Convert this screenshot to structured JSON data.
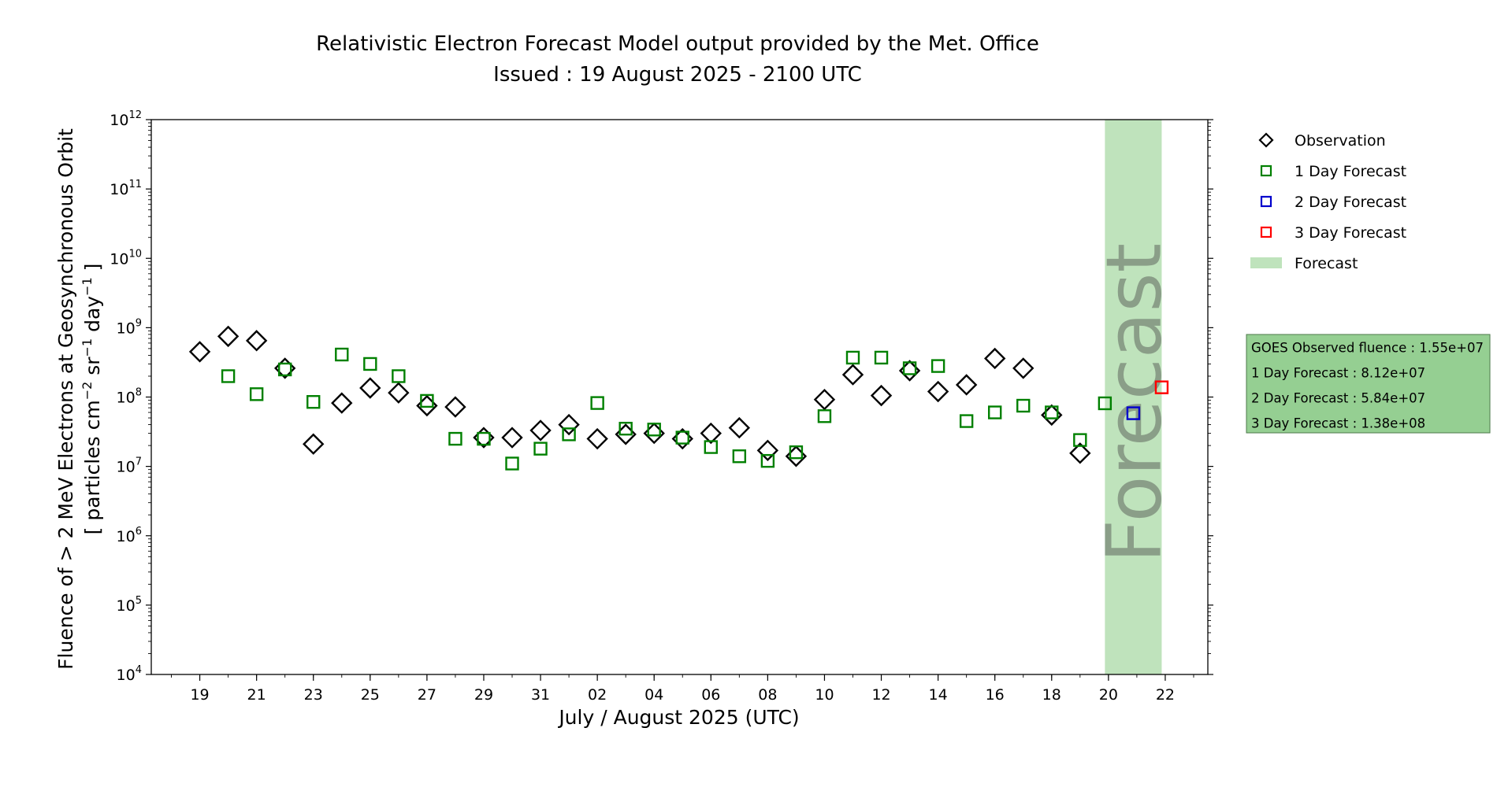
{
  "chart_data": {
    "type": "scatter",
    "title": "Relativistic Electron Forecast Model output provided by the Met. Office",
    "subtitle": "Issued : 19 August 2025 - 2100 UTC",
    "xlabel": "July / August 2025 (UTC)",
    "ylabel_line1": "Fluence of > 2 MeV Electrons at Geosynchronous Orbit",
    "ylabel_line2": "[ particles cm",
    "ylabel_sup1": "−2",
    "ylabel_mid": " sr",
    "ylabel_sup2": "−1",
    "ylabel_mid2": " day",
    "ylabel_sup3": "−1",
    "ylabel_end": " ]",
    "y_scale": "log",
    "ylim": [
      10000,
      1000000000000
    ],
    "y_ticks": [
      {
        "base": "10",
        "exp": "4",
        "value": 10000
      },
      {
        "base": "10",
        "exp": "5",
        "value": 100000
      },
      {
        "base": "10",
        "exp": "6",
        "value": 1000000
      },
      {
        "base": "10",
        "exp": "7",
        "value": 10000000
      },
      {
        "base": "10",
        "exp": "8",
        "value": 100000000
      },
      {
        "base": "10",
        "exp": "9",
        "value": 1000000000
      },
      {
        "base": "10",
        "exp": "10",
        "value": 10000000000
      },
      {
        "base": "10",
        "exp": "11",
        "value": 100000000000
      },
      {
        "base": "10",
        "exp": "12",
        "value": 1000000000000
      }
    ],
    "xlim": [
      "2025-07-17T07:00",
      "2025-08-23T12:00"
    ],
    "x_ticks": [
      {
        "label": "19",
        "date": "2025-07-19"
      },
      {
        "label": "21",
        "date": "2025-07-21"
      },
      {
        "label": "23",
        "date": "2025-07-23"
      },
      {
        "label": "25",
        "date": "2025-07-25"
      },
      {
        "label": "27",
        "date": "2025-07-27"
      },
      {
        "label": "29",
        "date": "2025-07-29"
      },
      {
        "label": "31",
        "date": "2025-07-31"
      },
      {
        "label": "02",
        "date": "2025-08-02"
      },
      {
        "label": "04",
        "date": "2025-08-04"
      },
      {
        "label": "06",
        "date": "2025-08-06"
      },
      {
        "label": "08",
        "date": "2025-08-08"
      },
      {
        "label": "10",
        "date": "2025-08-10"
      },
      {
        "label": "12",
        "date": "2025-08-12"
      },
      {
        "label": "14",
        "date": "2025-08-14"
      },
      {
        "label": "16",
        "date": "2025-08-16"
      },
      {
        "label": "18",
        "date": "2025-08-18"
      },
      {
        "label": "20",
        "date": "2025-08-20"
      },
      {
        "label": "22",
        "date": "2025-08-22"
      }
    ],
    "forecast_region": {
      "label": "Forecast",
      "start": "2025-08-19T21:00",
      "end": "2025-08-21T21:00",
      "color": "#bfe3bc"
    },
    "grid": false,
    "legend_position": "right",
    "legend": [
      {
        "label": "Observation",
        "marker": "diamond",
        "color": "#000000"
      },
      {
        "label": "1 Day Forecast",
        "marker": "square",
        "color": "#008000"
      },
      {
        "label": "2 Day Forecast",
        "marker": "square",
        "color": "#0000cc"
      },
      {
        "label": "3 Day Forecast",
        "marker": "square",
        "color": "#ff0000"
      },
      {
        "label": "Forecast",
        "marker": "band",
        "color": "#bfe3bc"
      }
    ],
    "series": [
      {
        "name": "Observation",
        "marker": "diamond",
        "color": "#000000",
        "points": [
          {
            "x": "2025-07-19",
            "y": 450000000
          },
          {
            "x": "2025-07-20",
            "y": 750000000
          },
          {
            "x": "2025-07-21",
            "y": 650000000
          },
          {
            "x": "2025-07-22",
            "y": 260000000
          },
          {
            "x": "2025-07-23",
            "y": 21000000
          },
          {
            "x": "2025-07-24",
            "y": 82000000
          },
          {
            "x": "2025-07-25",
            "y": 135000000
          },
          {
            "x": "2025-07-26",
            "y": 115000000
          },
          {
            "x": "2025-07-27",
            "y": 75000000
          },
          {
            "x": "2025-07-28",
            "y": 72000000
          },
          {
            "x": "2025-07-29",
            "y": 26000000
          },
          {
            "x": "2025-07-30",
            "y": 26000000
          },
          {
            "x": "2025-07-31",
            "y": 33000000
          },
          {
            "x": "2025-08-01",
            "y": 40000000
          },
          {
            "x": "2025-08-02",
            "y": 25000000
          },
          {
            "x": "2025-08-03",
            "y": 29000000
          },
          {
            "x": "2025-08-04",
            "y": 30000000
          },
          {
            "x": "2025-08-05",
            "y": 25000000
          },
          {
            "x": "2025-08-06",
            "y": 30000000
          },
          {
            "x": "2025-08-07",
            "y": 36000000
          },
          {
            "x": "2025-08-08",
            "y": 17000000
          },
          {
            "x": "2025-08-09",
            "y": 14000000
          },
          {
            "x": "2025-08-10",
            "y": 92000000
          },
          {
            "x": "2025-08-11",
            "y": 210000000
          },
          {
            "x": "2025-08-12",
            "y": 105000000
          },
          {
            "x": "2025-08-13",
            "y": 240000000
          },
          {
            "x": "2025-08-14",
            "y": 120000000
          },
          {
            "x": "2025-08-15",
            "y": 150000000
          },
          {
            "x": "2025-08-16",
            "y": 360000000
          },
          {
            "x": "2025-08-17",
            "y": 260000000
          },
          {
            "x": "2025-08-18",
            "y": 55000000
          },
          {
            "x": "2025-08-19",
            "y": 15500000
          }
        ]
      },
      {
        "name": "1 Day Forecast",
        "marker": "square",
        "color": "#008000",
        "points": [
          {
            "x": "2025-07-20",
            "y": 200000000
          },
          {
            "x": "2025-07-21",
            "y": 110000000
          },
          {
            "x": "2025-07-22",
            "y": 250000000
          },
          {
            "x": "2025-07-23",
            "y": 85000000
          },
          {
            "x": "2025-07-24",
            "y": 410000000
          },
          {
            "x": "2025-07-25",
            "y": 300000000
          },
          {
            "x": "2025-07-26",
            "y": 200000000
          },
          {
            "x": "2025-07-27",
            "y": 88000000
          },
          {
            "x": "2025-07-28",
            "y": 25000000
          },
          {
            "x": "2025-07-29",
            "y": 25000000
          },
          {
            "x": "2025-07-30",
            "y": 11000000
          },
          {
            "x": "2025-07-31",
            "y": 18000000
          },
          {
            "x": "2025-08-01",
            "y": 29000000
          },
          {
            "x": "2025-08-02",
            "y": 82000000
          },
          {
            "x": "2025-08-03",
            "y": 35000000
          },
          {
            "x": "2025-08-04",
            "y": 34000000
          },
          {
            "x": "2025-08-05",
            "y": 26000000
          },
          {
            "x": "2025-08-06",
            "y": 19000000
          },
          {
            "x": "2025-08-07",
            "y": 14000000
          },
          {
            "x": "2025-08-08",
            "y": 12000000
          },
          {
            "x": "2025-08-09",
            "y": 16000000
          },
          {
            "x": "2025-08-10",
            "y": 53000000
          },
          {
            "x": "2025-08-11",
            "y": 370000000
          },
          {
            "x": "2025-08-12",
            "y": 370000000
          },
          {
            "x": "2025-08-13",
            "y": 260000000
          },
          {
            "x": "2025-08-14",
            "y": 280000000
          },
          {
            "x": "2025-08-15",
            "y": 45000000
          },
          {
            "x": "2025-08-16",
            "y": 60000000
          },
          {
            "x": "2025-08-17",
            "y": 75000000
          },
          {
            "x": "2025-08-18",
            "y": 60000000
          },
          {
            "x": "2025-08-19",
            "y": 24000000
          },
          {
            "x": "2025-08-19T21:00",
            "y": 81200000
          }
        ]
      },
      {
        "name": "2 Day Forecast",
        "marker": "square",
        "color": "#0000cc",
        "points": [
          {
            "x": "2025-08-20T21:00",
            "y": 58400000
          }
        ]
      },
      {
        "name": "3 Day Forecast",
        "marker": "square",
        "color": "#ff0000",
        "points": [
          {
            "x": "2025-08-21T21:00",
            "y": 138000000
          }
        ]
      }
    ],
    "summary_box": {
      "color": "#95cf92",
      "lines": [
        "GOES Observed fluence : 1.55e+07",
        "1 Day Forecast : 8.12e+07",
        "2 Day Forecast : 5.84e+07",
        "3 Day Forecast : 1.38e+08"
      ]
    }
  }
}
